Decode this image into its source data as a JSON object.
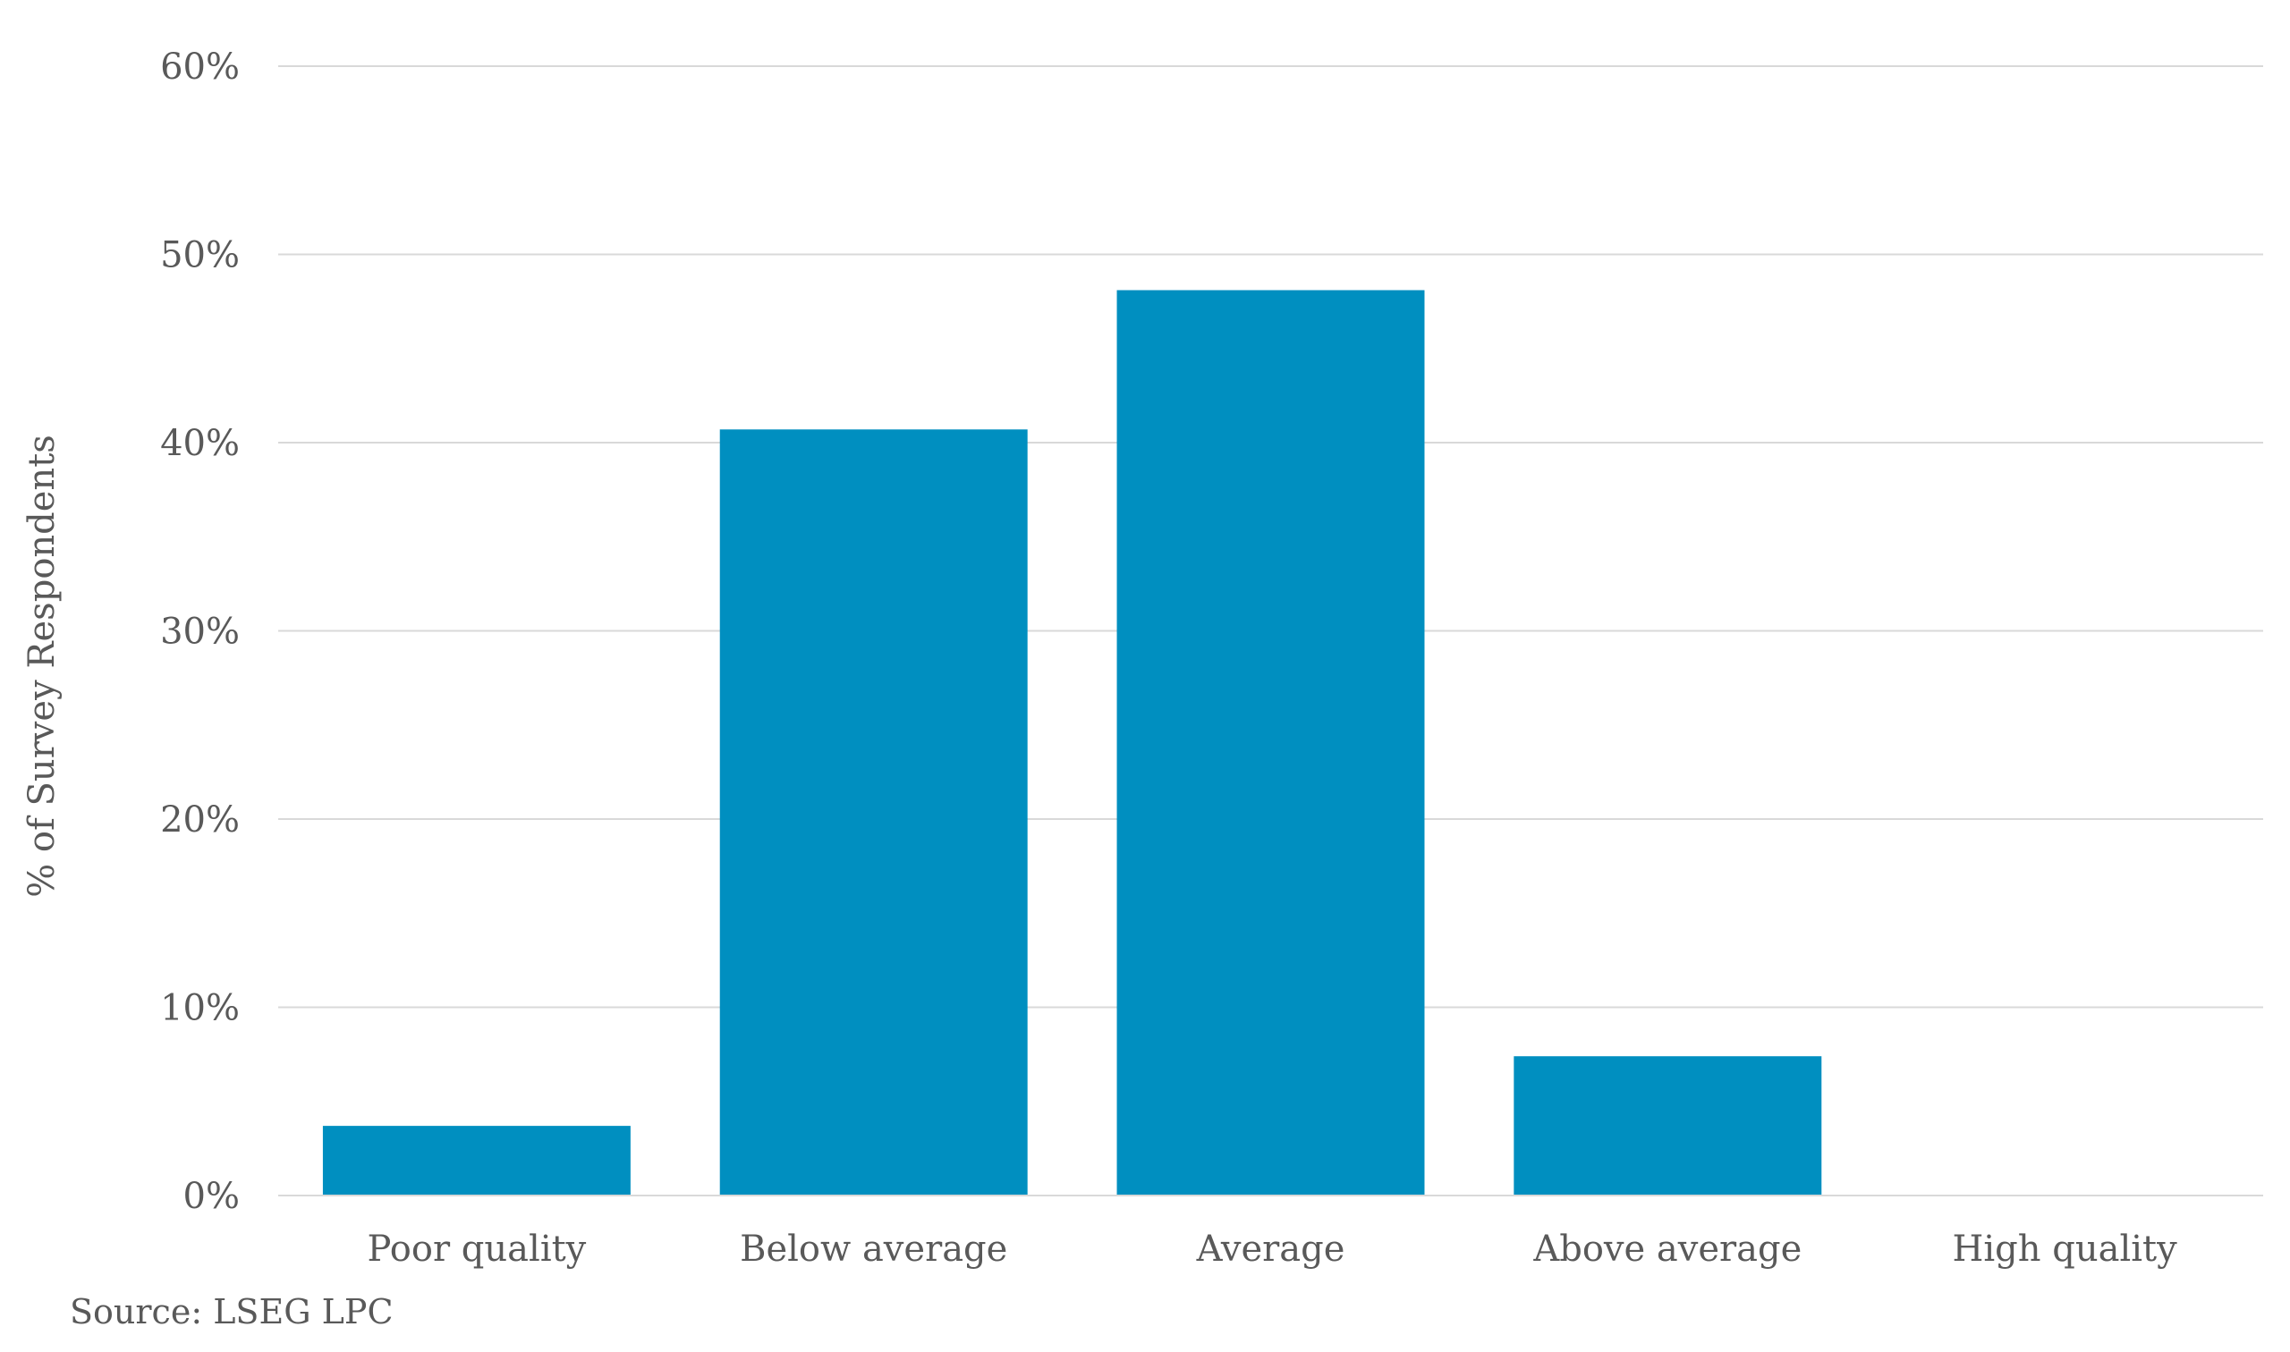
{
  "chart_data": {
    "type": "bar",
    "title": "",
    "xlabel": "",
    "ylabel": "% of Survey Respondents",
    "categories": [
      "Poor quality",
      "Below average",
      "Average",
      "Above average",
      "High quality"
    ],
    "values": [
      3.7,
      40.7,
      48.1,
      7.4,
      0
    ],
    "ylim": [
      0,
      60
    ],
    "yticks": [
      0,
      10,
      20,
      30,
      40,
      50,
      60
    ],
    "ytick_labels": [
      "0%",
      "10%",
      "20%",
      "30%",
      "40%",
      "50%",
      "60%"
    ],
    "grid": true,
    "legend": "none",
    "bar_color": "#008fc0"
  },
  "source": "Source: LSEG LPC"
}
